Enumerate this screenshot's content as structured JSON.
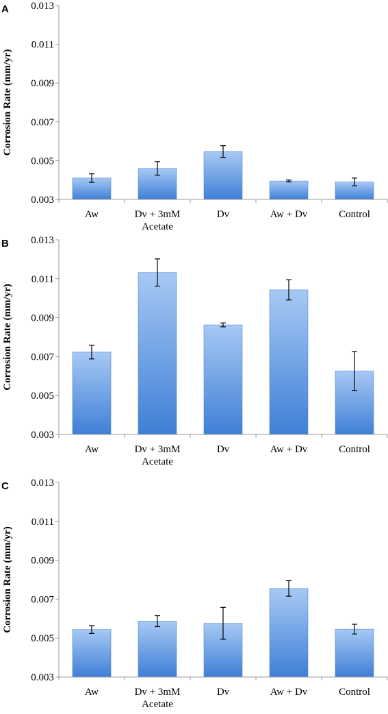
{
  "chart_data": [
    {
      "type": "bar",
      "panel": "A",
      "ylabel": "Corrosion Rate (mm/yr)",
      "ylim": [
        0.003,
        0.013
      ],
      "yticks": [
        "0.003",
        "0.005",
        "0.007",
        "0.009",
        "0.011",
        "0.013"
      ],
      "categories": [
        [
          "Aw"
        ],
        [
          "Dv + 3mM",
          "Acetate"
        ],
        [
          "Dv"
        ],
        [
          "Aw + Dv"
        ],
        [
          "Control"
        ]
      ],
      "values": [
        0.0041,
        0.0046,
        0.00547,
        0.00395,
        0.0039
      ],
      "errors": [
        0.00022,
        0.00035,
        0.0003,
        5e-05,
        0.0002
      ],
      "grid": false,
      "bar_color": "#5b92de"
    },
    {
      "type": "bar",
      "panel": "B",
      "ylabel": "Corrosion Rate (mm/yr)",
      "ylim": [
        0.003,
        0.013
      ],
      "yticks": [
        "0.003",
        "0.005",
        "0.007",
        "0.009",
        "0.011",
        "0.013"
      ],
      "categories": [
        [
          "Aw"
        ],
        [
          "Dv + 3mM",
          "Acetate"
        ],
        [
          "Dv"
        ],
        [
          "Aw + Dv"
        ],
        [
          "Control"
        ]
      ],
      "values": [
        0.00723,
        0.01132,
        0.00863,
        0.01043,
        0.00626
      ],
      "errors": [
        0.00035,
        0.0007,
        0.0001,
        0.00052,
        0.001
      ],
      "grid": false,
      "bar_color": "#5b92de"
    },
    {
      "type": "bar",
      "panel": "C",
      "ylabel": "Corrosion Rate (mm/yr)",
      "ylim": [
        0.003,
        0.013
      ],
      "yticks": [
        "0.003",
        "0.005",
        "0.007",
        "0.009",
        "0.011",
        "0.013"
      ],
      "categories": [
        [
          "Aw"
        ],
        [
          "Dv + 3mM",
          "Acetate"
        ],
        [
          "Dv"
        ],
        [
          "Aw + Dv"
        ],
        [
          "Control"
        ]
      ],
      "values": [
        0.00544,
        0.00587,
        0.00576,
        0.00755,
        0.00546
      ],
      "errors": [
        0.0002,
        0.00028,
        0.00082,
        0.0004,
        0.00025
      ],
      "grid": false,
      "bar_color": "#5b92de"
    }
  ]
}
